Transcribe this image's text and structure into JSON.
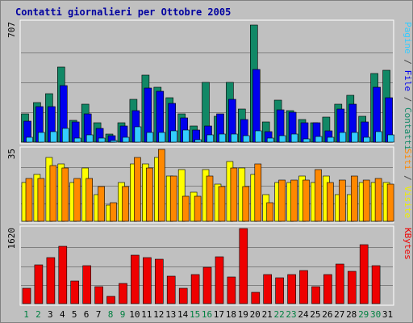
{
  "title": "Contatti giornalieri per Ottobre 2005",
  "chart_data": [
    {
      "type": "bar",
      "panel": "contatti-pagine-file",
      "max_label": "707",
      "ylim": [
        0,
        707
      ],
      "grid": true,
      "side_label_parts": [
        {
          "text": "Pagine",
          "color": "#33ccff"
        },
        {
          "text": " / ",
          "color": "#444444"
        },
        {
          "text": "File",
          "color": "#0000ee"
        },
        {
          "text": " / ",
          "color": "#444444"
        },
        {
          "text": "Contatti",
          "color": "#118866"
        }
      ],
      "categories": [
        "1",
        "2",
        "3",
        "4",
        "5",
        "6",
        "7",
        "8",
        "9",
        "10",
        "11",
        "12",
        "13",
        "14",
        "15",
        "16",
        "17",
        "18",
        "19",
        "20",
        "21",
        "22",
        "23",
        "24",
        "25",
        "26",
        "27",
        "28",
        "29",
        "30",
        "31"
      ],
      "series": [
        {
          "name": "Contatti",
          "color": "#118866",
          "values": [
            165,
            235,
            285,
            445,
            130,
            225,
            115,
            50,
            115,
            255,
            395,
            325,
            265,
            165,
            95,
            355,
            155,
            355,
            195,
            695,
            120,
            250,
            185,
            135,
            115,
            150,
            225,
            275,
            155,
            405,
            425
          ]
        },
        {
          "name": "File",
          "color": "#0000ee",
          "values": [
            125,
            210,
            210,
            335,
            120,
            165,
            80,
            40,
            95,
            185,
            320,
            300,
            230,
            145,
            70,
            95,
            165,
            255,
            135,
            430,
            60,
            190,
            175,
            115,
            115,
            65,
            195,
            225,
            120,
            325,
            265
          ]
        },
        {
          "name": "Pagine",
          "color": "#33ccff",
          "values": [
            30,
            55,
            60,
            80,
            25,
            45,
            25,
            10,
            30,
            90,
            55,
            55,
            65,
            70,
            15,
            45,
            50,
            50,
            40,
            65,
            25,
            40,
            50,
            20,
            35,
            30,
            55,
            55,
            30,
            60,
            45
          ]
        }
      ]
    },
    {
      "type": "bar",
      "panel": "visite-siti",
      "max_label": "35",
      "ylim": [
        0,
        35
      ],
      "grid": true,
      "side_label_parts": [
        {
          "text": "Siti",
          "color": "#ff8800"
        },
        {
          "text": " / ",
          "color": "#444444"
        },
        {
          "text": "Visite",
          "color": "#eeee00"
        }
      ],
      "categories": [
        "1",
        "2",
        "3",
        "4",
        "5",
        "6",
        "7",
        "8",
        "9",
        "10",
        "11",
        "12",
        "13",
        "14",
        "15",
        "16",
        "17",
        "18",
        "19",
        "20",
        "21",
        "22",
        "23",
        "24",
        "25",
        "26",
        "27",
        "28",
        "29",
        "30",
        "31"
      ],
      "series": [
        {
          "name": "Visite",
          "color": "#ffff00",
          "values": [
            19,
            23,
            31,
            28,
            19,
            26,
            13,
            8,
            19,
            28,
            28,
            31,
            22,
            25,
            14,
            25,
            18,
            29,
            26,
            23,
            13,
            19,
            19,
            22,
            19,
            22,
            13,
            13,
            19,
            19,
            19
          ]
        },
        {
          "name": "Siti",
          "color": "#ff8800",
          "values": [
            21,
            21,
            27,
            26,
            21,
            21,
            17,
            9,
            17,
            31,
            26,
            35,
            22,
            12,
            12,
            22,
            17,
            26,
            17,
            28,
            9,
            20,
            20,
            20,
            25,
            19,
            20,
            22,
            20,
            21,
            18
          ]
        }
      ]
    },
    {
      "type": "bar",
      "panel": "kbytes",
      "max_label": "1620",
      "ylim": [
        0,
        1620
      ],
      "grid": true,
      "side_label_parts": [
        {
          "text": "KBytes",
          "color": "#ee0000"
        }
      ],
      "categories": [
        "1",
        "2",
        "3",
        "4",
        "5",
        "6",
        "7",
        "8",
        "9",
        "10",
        "11",
        "12",
        "13",
        "14",
        "15",
        "16",
        "17",
        "18",
        "19",
        "20",
        "21",
        "22",
        "23",
        "24",
        "25",
        "26",
        "27",
        "28",
        "29",
        "30",
        "31"
      ],
      "series": [
        {
          "name": "KBytes",
          "color": "#ee0000",
          "values": [
            330,
            830,
            990,
            1240,
            480,
            820,
            370,
            150,
            430,
            1050,
            990,
            960,
            600,
            330,
            620,
            780,
            1010,
            570,
            1620,
            250,
            620,
            560,
            620,
            710,
            370,
            630,
            860,
            700,
            1280,
            820,
            0
          ]
        }
      ]
    }
  ],
  "x_axis": {
    "days": [
      "1",
      "2",
      "3",
      "4",
      "5",
      "6",
      "7",
      "8",
      "9",
      "10",
      "11",
      "12",
      "13",
      "14",
      "15",
      "16",
      "17",
      "18",
      "19",
      "20",
      "21",
      "22",
      "23",
      "24",
      "25",
      "26",
      "27",
      "28",
      "29",
      "30",
      "31"
    ],
    "weekend_days": [
      "1",
      "2",
      "8",
      "9",
      "15",
      "16",
      "22",
      "23",
      "29",
      "30"
    ],
    "weekday_color": "#000000",
    "weekend_color": "#008040"
  }
}
